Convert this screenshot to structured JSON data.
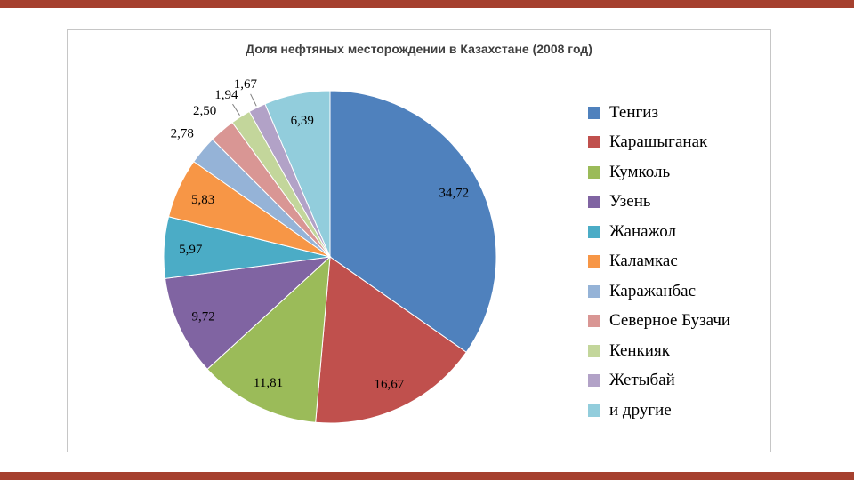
{
  "theme": {
    "accent_bar_color": "#a5402e",
    "chart_border_color": "#c6c6c6",
    "title_color": "#3f3f3f",
    "label_color": "#000000",
    "leader_line_color": "#7f7f7f"
  },
  "chart_data": {
    "type": "pie",
    "title": "Доля нефтяных месторождении в Казахстане (2008 год)",
    "legend_position": "right",
    "start_angle_deg": 0,
    "direction": "clockwise",
    "value_format": "comma-decimal",
    "slices": [
      {
        "label": "Тенгиз",
        "value": 34.72,
        "display": "34,72",
        "color": "#4f81bd"
      },
      {
        "label": "Карашыганак",
        "value": 16.67,
        "display": "16,67",
        "color": "#c0504d"
      },
      {
        "label": "Кумколь",
        "value": 11.81,
        "display": "11,81",
        "color": "#9bbb59"
      },
      {
        "label": "Узень",
        "value": 9.72,
        "display": "9,72",
        "color": "#8064a2"
      },
      {
        "label": "Жанажол",
        "value": 5.97,
        "display": "5,97",
        "color": "#4bacc6"
      },
      {
        "label": "Каламкас",
        "value": 5.83,
        "display": "5,83",
        "color": "#f79646"
      },
      {
        "label": "Каражанбас",
        "value": 2.78,
        "display": "2,78",
        "color": "#95b3d7"
      },
      {
        "label": "Северное Бузачи",
        "value": 2.5,
        "display": "2,50",
        "color": "#d99694"
      },
      {
        "label": "Кенкияк",
        "value": 1.94,
        "display": "1,94",
        "color": "#c3d69b"
      },
      {
        "label": "Жетыбай",
        "value": 1.67,
        "display": "1,67",
        "color": "#b2a2c7"
      },
      {
        "label": "и другие",
        "value": 6.39,
        "display": "6,39",
        "color": "#92cddc"
      }
    ]
  }
}
